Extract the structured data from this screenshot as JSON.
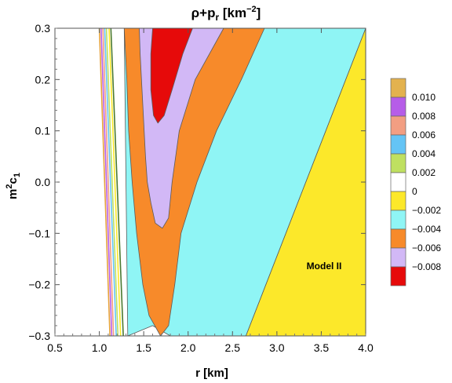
{
  "chart_data": {
    "type": "contour",
    "title": "ρ+p",
    "title_subscript": "r",
    "title_unit_prefix": " [km",
    "title_unit_exponent": "−2",
    "title_unit_suffix": "]",
    "xlabel": "r [km]",
    "ylabel_base": "m",
    "ylabel_exp": "2",
    "ylabel_mid": "c",
    "ylabel_sub": "1",
    "xlim": [
      0.5,
      4.0
    ],
    "ylim": [
      -0.3,
      0.3
    ],
    "x_ticks": [
      "0.5",
      "1.0",
      "1.5",
      "2.0",
      "2.5",
      "3.0",
      "3.5",
      "4.0"
    ],
    "y_ticks": [
      "−0.3",
      "−0.2",
      "−0.1",
      "0.0",
      "0.1",
      "0.2",
      "0.3"
    ],
    "annotation": "Model II",
    "legend": {
      "placement": "right",
      "entries": [
        {
          "label": "",
          "color": "#E3B24E"
        },
        {
          "label": "0.010",
          "color": "#B65DE8"
        },
        {
          "label": "0.008",
          "color": "#F29E82"
        },
        {
          "label": "0.006",
          "color": "#64C4F5"
        },
        {
          "label": "0.004",
          "color": "#BFE060"
        },
        {
          "label": "0.002",
          "color": "#FFFFFF"
        },
        {
          "label": "0",
          "color": "#FCE82A"
        },
        {
          "label": "−0.002",
          "color": "#8FF5F5"
        },
        {
          "label": "−0.004",
          "color": "#F78A2A"
        },
        {
          "label": "−0.006",
          "color": "#D2B8F6"
        },
        {
          "label": "−0.008",
          "color": "#E60A0A"
        }
      ]
    },
    "regions": [
      {
        "name": "yellow-region",
        "color": "#FCE82A",
        "points": [
          [
            4.0,
            0.3
          ],
          [
            4.0,
            -0.3
          ],
          [
            2.65,
            -0.3
          ]
        ]
      },
      {
        "name": "cyan-region",
        "color": "#8FF5F5",
        "points": [
          [
            2.86,
            0.3
          ],
          [
            4.0,
            0.3
          ],
          [
            2.65,
            -0.3
          ],
          [
            1.8,
            -0.3
          ],
          [
            1.6,
            -0.28
          ],
          [
            1.32,
            -0.3
          ],
          [
            1.28,
            0.3
          ]
        ]
      },
      {
        "name": "orange-region",
        "color": "#F78A2A",
        "points": [
          [
            1.35,
            0.3
          ],
          [
            2.86,
            0.3
          ],
          [
            2.6,
            0.2
          ],
          [
            2.32,
            0.1
          ],
          [
            2.1,
            0.0
          ],
          [
            1.92,
            -0.1
          ],
          [
            1.85,
            -0.2
          ],
          [
            1.78,
            -0.28
          ],
          [
            1.69,
            -0.3
          ],
          [
            1.56,
            -0.26
          ],
          [
            1.49,
            -0.2
          ],
          [
            1.42,
            -0.1
          ],
          [
            1.37,
            0.0
          ],
          [
            1.33,
            0.1
          ],
          [
            1.31,
            0.2
          ],
          [
            1.28,
            0.3
          ]
        ]
      },
      {
        "name": "lavender-region",
        "color": "#D2B8F6",
        "points": [
          [
            1.45,
            0.3
          ],
          [
            2.4,
            0.3
          ],
          [
            2.08,
            0.2
          ],
          [
            1.9,
            0.1
          ],
          [
            1.82,
            0.0
          ],
          [
            1.78,
            -0.07
          ],
          [
            1.71,
            -0.09
          ],
          [
            1.63,
            -0.08
          ],
          [
            1.58,
            -0.04
          ],
          [
            1.54,
            0.0
          ],
          [
            1.52,
            0.05
          ],
          [
            1.49,
            0.15
          ],
          [
            1.46,
            0.25
          ],
          [
            1.45,
            0.3
          ]
        ]
      },
      {
        "name": "red-region",
        "color": "#E60A0A",
        "points": [
          [
            1.6,
            0.3
          ],
          [
            2.05,
            0.3
          ],
          [
            1.94,
            0.25
          ],
          [
            1.82,
            0.18
          ],
          [
            1.73,
            0.13
          ],
          [
            1.66,
            0.115
          ],
          [
            1.61,
            0.13
          ],
          [
            1.58,
            0.18
          ],
          [
            1.58,
            0.25
          ],
          [
            1.6,
            0.3
          ]
        ]
      }
    ],
    "contour_lines": [
      {
        "color": "#E6A23C",
        "points": [
          [
            1.0,
            0.3
          ],
          [
            1.12,
            -0.3
          ]
        ]
      },
      {
        "color": "#B65DE8",
        "points": [
          [
            1.02,
            0.3
          ],
          [
            1.14,
            -0.3
          ]
        ]
      },
      {
        "color": "#F29E82",
        "points": [
          [
            1.04,
            0.3
          ],
          [
            1.16,
            -0.3
          ]
        ]
      },
      {
        "color": "#64C4F5",
        "points": [
          [
            1.06,
            0.3
          ],
          [
            1.19,
            -0.3
          ]
        ]
      },
      {
        "color": "#BFE060",
        "points": [
          [
            1.08,
            0.3
          ],
          [
            1.21,
            -0.3
          ]
        ]
      },
      {
        "color": "#FCE82A",
        "points": [
          [
            1.11,
            0.3
          ],
          [
            1.24,
            -0.3
          ]
        ]
      },
      {
        "color": "#4A7A30",
        "points": [
          [
            1.13,
            0.3
          ],
          [
            1.27,
            -0.3
          ]
        ]
      }
    ]
  }
}
